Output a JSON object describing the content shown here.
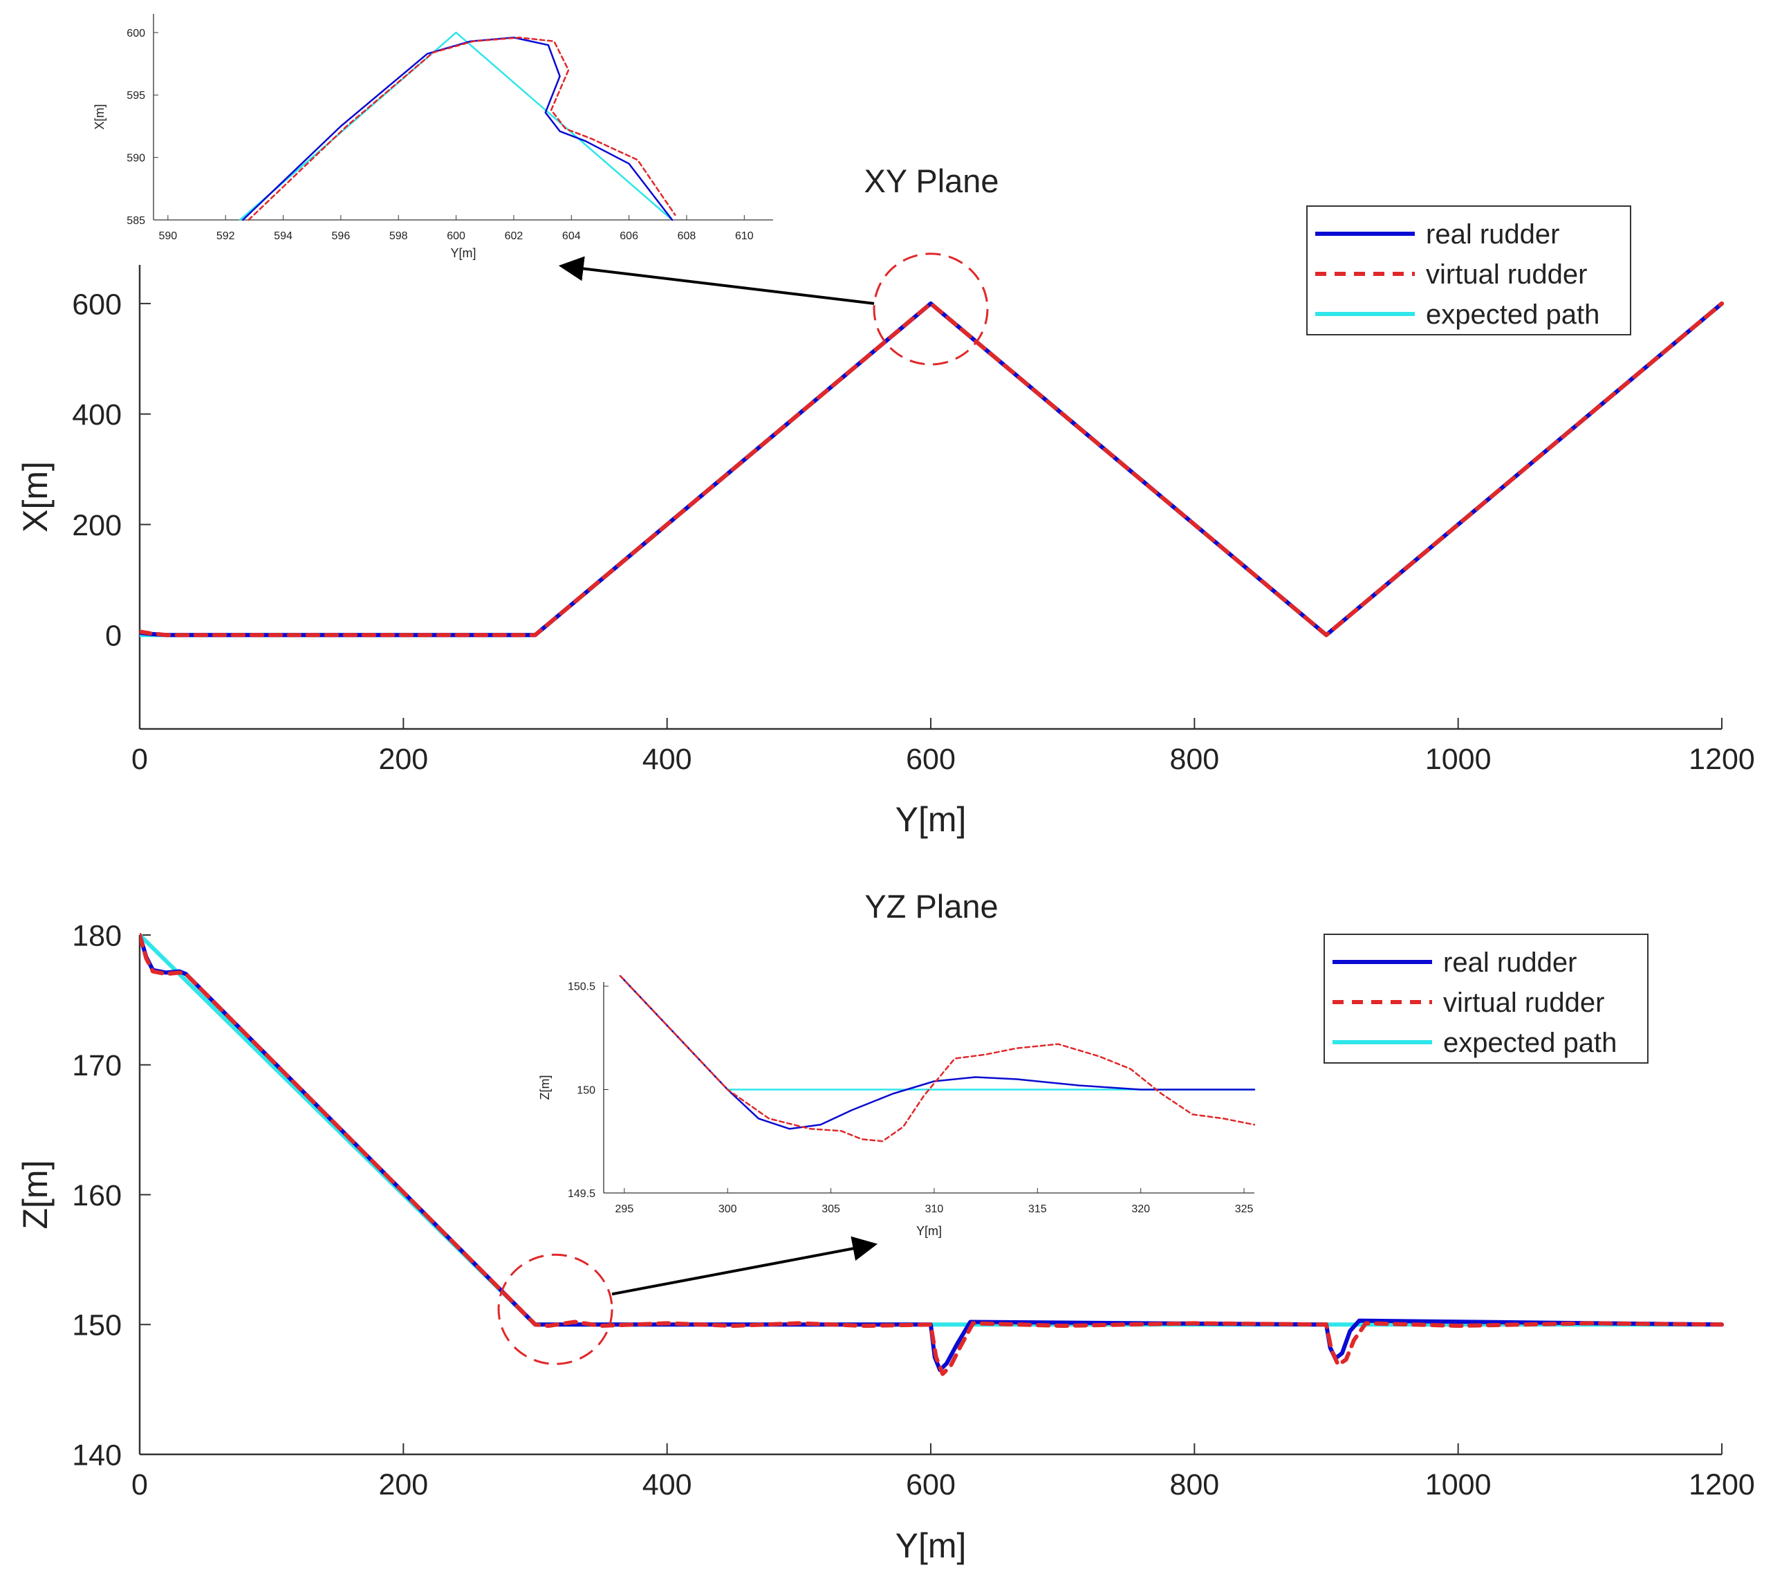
{
  "colors": {
    "real": "#0a0ad2",
    "virtual": "#e0282a",
    "expected": "#2fe6ea",
    "axis": "#333333",
    "text": "#222222",
    "highlight": "#e0282a",
    "arrow": "#000000"
  },
  "chart_data": [
    {
      "id": "xy",
      "type": "line",
      "title": "XY Plane",
      "xlabel": "Y[m]",
      "ylabel": "X[m]",
      "xlim": [
        0,
        1200
      ],
      "ylim": [
        -170,
        670
      ],
      "xticks": [
        0,
        200,
        400,
        600,
        800,
        1000,
        1200
      ],
      "yticks": [
        0,
        200,
        400,
        600
      ],
      "legend": {
        "position": "top-right",
        "entries": [
          "real rudder",
          "virtual rudder",
          "expected path"
        ]
      },
      "series": [
        {
          "name": "expected path",
          "style": "solid",
          "x": [
            0,
            300,
            600,
            900,
            1200
          ],
          "y": [
            0,
            0,
            600,
            0,
            600
          ]
        },
        {
          "name": "real rudder",
          "style": "solid",
          "x": [
            0,
            8,
            20,
            300,
            600,
            900,
            1200
          ],
          "y": [
            4,
            2,
            0,
            0,
            600,
            0,
            600
          ]
        },
        {
          "name": "virtual rudder",
          "style": "dashed",
          "x": [
            0,
            8,
            20,
            300,
            600,
            900,
            1200
          ],
          "y": [
            6,
            3,
            0,
            0,
            600,
            0,
            600
          ]
        }
      ],
      "highlight": {
        "center": [
          600,
          590
        ],
        "note": "zoom region"
      }
    },
    {
      "id": "xy-inset",
      "type": "line",
      "title": "",
      "xlabel": "Y[m]",
      "ylabel": "X[m]",
      "xlim": [
        589.5,
        611
      ],
      "ylim": [
        585,
        601.5
      ],
      "xticks": [
        590,
        592,
        594,
        596,
        598,
        600,
        602,
        604,
        606,
        608,
        610
      ],
      "yticks": [
        585,
        590,
        595,
        600
      ],
      "series": [
        {
          "name": "expected path",
          "style": "solid",
          "x": [
            592.5,
            600,
            607.5
          ],
          "y": [
            585,
            600,
            585
          ]
        },
        {
          "name": "real rudder",
          "style": "solid",
          "x": [
            592.6,
            596,
            599,
            600.5,
            602,
            603.2,
            603.6,
            603.1,
            603.6,
            604.5,
            606,
            607.5
          ],
          "y": [
            585,
            592.5,
            598.3,
            599.3,
            599.6,
            599.0,
            596.5,
            593.6,
            592.1,
            591.3,
            589.5,
            585
          ]
        },
        {
          "name": "virtual rudder",
          "style": "dashed",
          "x": [
            592.8,
            596.2,
            599.2,
            600.6,
            602.2,
            603.4,
            603.9,
            603.3,
            603.8,
            604.7,
            606.3,
            607.6
          ],
          "y": [
            585,
            592.5,
            598.4,
            599.3,
            599.6,
            599.3,
            597,
            593.8,
            592.3,
            591.5,
            589.8,
            585.4
          ]
        }
      ]
    },
    {
      "id": "yz",
      "type": "line",
      "title": "YZ Plane",
      "xlabel": "Y[m]",
      "ylabel": "Z[m]",
      "xlim": [
        0,
        1200
      ],
      "ylim": [
        140,
        180
      ],
      "xticks": [
        0,
        200,
        400,
        600,
        800,
        1000,
        1200
      ],
      "yticks": [
        140,
        150,
        160,
        170,
        180
      ],
      "legend": {
        "position": "top-right",
        "entries": [
          "real rudder",
          "virtual rudder",
          "expected path"
        ]
      },
      "series": [
        {
          "name": "expected path",
          "style": "solid",
          "x": [
            0,
            300,
            1200
          ],
          "y": [
            180,
            150,
            150
          ]
        },
        {
          "name": "real rudder",
          "style": "solid",
          "x": [
            0,
            5,
            10,
            20,
            30,
            35,
            300,
            600,
            603,
            607,
            612,
            620,
            630,
            900,
            903,
            907,
            912,
            918,
            925,
            1200
          ],
          "y": [
            180,
            178.3,
            177.3,
            177.1,
            177.2,
            177,
            150,
            150,
            147.5,
            146.5,
            147,
            148.5,
            150.2,
            150,
            148.2,
            147.4,
            147.8,
            149.5,
            150.3,
            150
          ]
        },
        {
          "name": "virtual rudder",
          "style": "dashed",
          "x": [
            0,
            5,
            10,
            20,
            30,
            35,
            300,
            310,
            330,
            350,
            400,
            450,
            500,
            550,
            600,
            604,
            609,
            615,
            622,
            632,
            700,
            800,
            900,
            904,
            909,
            915,
            921,
            930,
            1000,
            1100,
            1200
          ],
          "y": [
            180,
            178.2,
            177.2,
            177.0,
            177.1,
            177,
            150,
            149.9,
            150.2,
            149.9,
            150.1,
            149.9,
            150.1,
            149.9,
            150,
            147.5,
            146.2,
            146.8,
            148.2,
            150.1,
            149.9,
            150.1,
            150,
            148,
            146.9,
            147.3,
            148.8,
            150.1,
            149.9,
            150.1,
            150
          ]
        }
      ],
      "highlight": {
        "center": [
          310,
          150
        ],
        "note": "zoom region"
      }
    },
    {
      "id": "yz-inset",
      "type": "line",
      "title": "",
      "xlabel": "Y[m]",
      "ylabel": "Z[m]",
      "xlim": [
        294,
        325.5
      ],
      "ylim": [
        149.5,
        150.52
      ],
      "xticks": [
        295,
        300,
        305,
        310,
        315,
        320,
        325
      ],
      "yticks": [
        149.5,
        150,
        150.5
      ],
      "series": [
        {
          "name": "expected path",
          "style": "solid",
          "x": [
            294.8,
            300,
            325.5
          ],
          "y": [
            150.55,
            150,
            150
          ]
        },
        {
          "name": "real rudder",
          "style": "solid",
          "x": [
            294.8,
            300,
            301.5,
            303,
            304.5,
            306,
            308,
            310,
            312,
            314,
            317,
            320,
            325.5
          ],
          "y": [
            150.55,
            150,
            149.86,
            149.81,
            149.83,
            149.9,
            149.98,
            150.04,
            150.06,
            150.05,
            150.02,
            150,
            150
          ]
        },
        {
          "name": "virtual rudder",
          "style": "dashed",
          "x": [
            294.8,
            300,
            302,
            304,
            305.5,
            306.5,
            307.5,
            308.5,
            309.5,
            311,
            312.5,
            314,
            316,
            318,
            319.5,
            321,
            322.5,
            324,
            325.5
          ],
          "y": [
            150.55,
            150,
            149.86,
            149.81,
            149.8,
            149.76,
            149.75,
            149.82,
            149.97,
            150.15,
            150.17,
            150.2,
            150.22,
            150.16,
            150.1,
            149.98,
            149.88,
            149.86,
            149.83
          ]
        }
      ]
    }
  ]
}
